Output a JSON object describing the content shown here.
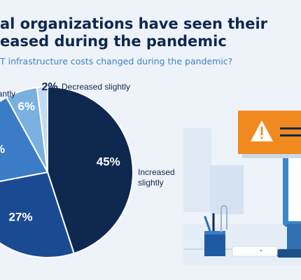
{
  "header": {
    "title_line1": "al organizations have seen their",
    "title_line2": "eased during the pandemic",
    "subtitle": "T infrastructure costs changed during the pandemic?"
  },
  "colors": {
    "increased_slightly": "#0f2850",
    "slice_2": "#1a4b92",
    "slice_3": "#3a7cc6",
    "decreased_slightly_6": "#7ab0e0",
    "decreased_slightly_2": "#c3dbf2",
    "background": "#eef3f9",
    "warning_orange": "#f08a1e"
  },
  "chart_data": {
    "type": "pie",
    "slices": [
      {
        "value": 45,
        "value_label": "45%",
        "label_lines": [
          "Increased",
          "slightly"
        ],
        "color": "#0f2850"
      },
      {
        "value": 27,
        "value_label": "27%",
        "label_lines": [],
        "color": "#1a4b92"
      },
      {
        "value": 20,
        "value_label": "%",
        "label_lines": [],
        "color": "#3a7cc6"
      },
      {
        "value": 6,
        "value_label": "6%",
        "label_lines": [
          "antly"
        ],
        "color": "#7ab0e0"
      },
      {
        "value": 2,
        "value_label": "2%",
        "label_lines": [
          "Decreased slightly"
        ],
        "color": "#c3dbf2"
      }
    ]
  },
  "illustration": {
    "alert_icon": "warning-triangle-icon",
    "items": [
      "monitor-icon",
      "pen-cup-icon",
      "paperclip-icon",
      "keyboard-icon",
      "alert-popup-icon"
    ]
  }
}
